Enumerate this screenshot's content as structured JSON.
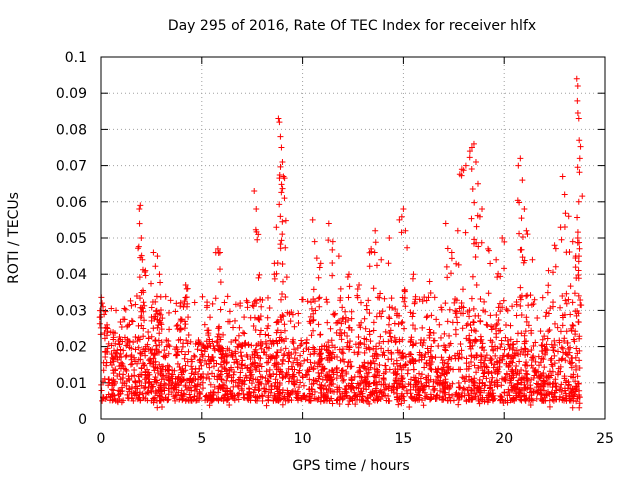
{
  "chart_data": {
    "type": "scatter",
    "title": "Day 295 of 2016, Rate Of TEC Index for receiver hlfx",
    "xlabel": "GPS time / hours",
    "ylabel": "ROTI / TECUs",
    "xlim": [
      0,
      25
    ],
    "ylim": [
      0,
      0.1
    ],
    "x_ticks": [
      0,
      5,
      10,
      15,
      20,
      25
    ],
    "x_tick_labels": [
      "0",
      "5",
      "10",
      "15",
      "20",
      "25"
    ],
    "y_ticks": [
      0,
      0.01,
      0.02,
      0.03,
      0.04,
      0.05,
      0.06,
      0.07,
      0.08,
      0.09,
      0.1
    ],
    "y_tick_labels": [
      "0",
      "0.01",
      "0.02",
      "0.03",
      "0.04",
      "0.05",
      "0.06",
      "0.07",
      "0.08",
      "0.09",
      "0.1"
    ],
    "grid": true,
    "marker": "+",
    "marker_color": "#ff0000",
    "series": [
      {
        "name": "ROTI",
        "x_range": [
          0,
          23.75
        ],
        "baseline_band": [
          0.005,
          0.022
        ],
        "points": [
          [
            0.05,
            0.032
          ],
          [
            0.1,
            0.031
          ],
          [
            0.3,
            0.026
          ],
          [
            0.6,
            0.024
          ],
          [
            1.9,
            0.058
          ],
          [
            1.95,
            0.059
          ],
          [
            2.0,
            0.05
          ],
          [
            2.05,
            0.044
          ],
          [
            2.1,
            0.035
          ],
          [
            2.2,
            0.041
          ],
          [
            2.6,
            0.046
          ],
          [
            2.8,
            0.045
          ],
          [
            2.9,
            0.04
          ],
          [
            4.2,
            0.037
          ],
          [
            4.3,
            0.036
          ],
          [
            5.8,
            0.047
          ],
          [
            5.9,
            0.046
          ],
          [
            7.6,
            0.063
          ],
          [
            7.7,
            0.058
          ],
          [
            7.8,
            0.051
          ],
          [
            7.9,
            0.033
          ],
          [
            8.6,
            0.043
          ],
          [
            8.8,
            0.083
          ],
          [
            8.85,
            0.082
          ],
          [
            8.9,
            0.078
          ],
          [
            8.95,
            0.075
          ],
          [
            9.0,
            0.071
          ],
          [
            9.05,
            0.067
          ],
          [
            9.1,
            0.061
          ],
          [
            10.5,
            0.055
          ],
          [
            10.6,
            0.049
          ],
          [
            10.9,
            0.043
          ],
          [
            11.3,
            0.054
          ],
          [
            11.5,
            0.049
          ],
          [
            11.8,
            0.045
          ],
          [
            12.3,
            0.04
          ],
          [
            12.8,
            0.037
          ],
          [
            13.4,
            0.047
          ],
          [
            13.6,
            0.052
          ],
          [
            13.9,
            0.044
          ],
          [
            14.3,
            0.05
          ],
          [
            14.8,
            0.055
          ],
          [
            15.0,
            0.058
          ],
          [
            15.1,
            0.052
          ],
          [
            15.5,
            0.04
          ],
          [
            16.3,
            0.038
          ],
          [
            17.1,
            0.054
          ],
          [
            17.4,
            0.046
          ],
          [
            17.7,
            0.052
          ],
          [
            17.9,
            0.069
          ],
          [
            18.1,
            0.07
          ],
          [
            18.3,
            0.074
          ],
          [
            18.4,
            0.075
          ],
          [
            18.5,
            0.076
          ],
          [
            18.6,
            0.071
          ],
          [
            18.7,
            0.065
          ],
          [
            18.9,
            0.058
          ],
          [
            19.2,
            0.047
          ],
          [
            19.6,
            0.044
          ],
          [
            19.9,
            0.05
          ],
          [
            20.7,
            0.07
          ],
          [
            20.8,
            0.072
          ],
          [
            20.9,
            0.066
          ],
          [
            21.0,
            0.058
          ],
          [
            21.1,
            0.052
          ],
          [
            21.4,
            0.044
          ],
          [
            22.2,
            0.041
          ],
          [
            22.5,
            0.048
          ],
          [
            22.9,
            0.067
          ],
          [
            23.0,
            0.062
          ],
          [
            23.2,
            0.056
          ],
          [
            23.4,
            0.049
          ],
          [
            23.55,
            0.045
          ],
          [
            23.6,
            0.094
          ],
          [
            23.65,
            0.092
          ],
          [
            23.7,
            0.083
          ],
          [
            23.72,
            0.077
          ],
          [
            23.75,
            0.072
          ],
          [
            23.7,
            0.06
          ],
          [
            23.65,
            0.05
          ]
        ]
      }
    ]
  }
}
